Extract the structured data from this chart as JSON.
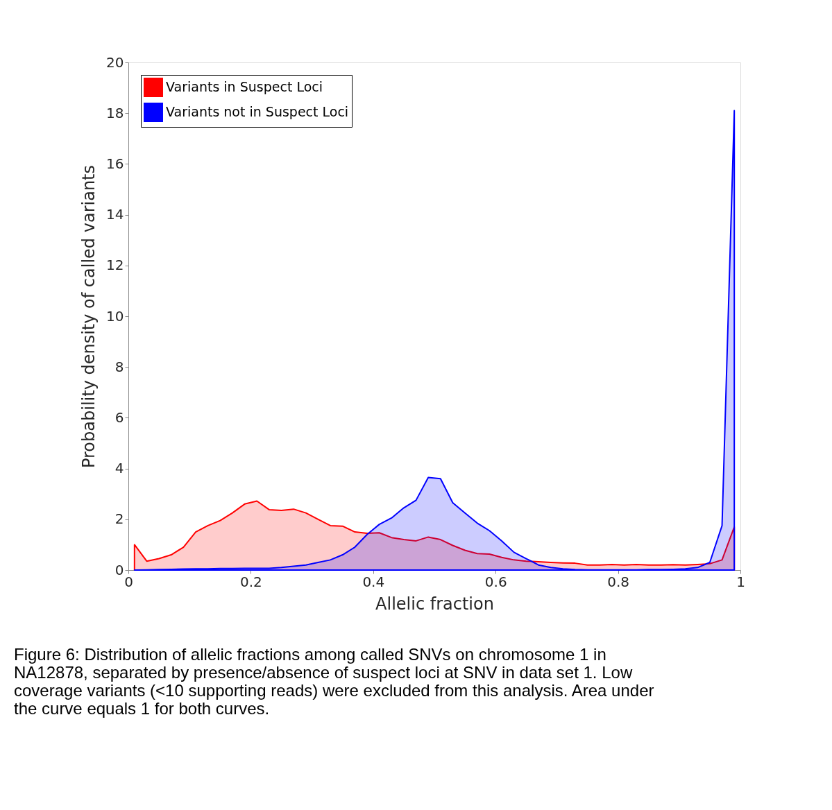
{
  "chart_data": {
    "type": "area",
    "xlabel": "Allelic fraction",
    "ylabel": "Probability density of called variants",
    "x": [
      0.01,
      0.03,
      0.05,
      0.07,
      0.09,
      0.11,
      0.13,
      0.15,
      0.17,
      0.19,
      0.21,
      0.23,
      0.25,
      0.27,
      0.29,
      0.31,
      0.33,
      0.35,
      0.37,
      0.39,
      0.41,
      0.43,
      0.45,
      0.47,
      0.49,
      0.51,
      0.53,
      0.55,
      0.57,
      0.59,
      0.61,
      0.63,
      0.65,
      0.67,
      0.69,
      0.71,
      0.73,
      0.75,
      0.77,
      0.79,
      0.81,
      0.83,
      0.85,
      0.87,
      0.89,
      0.91,
      0.93,
      0.95,
      0.97,
      0.99
    ],
    "series": [
      {
        "name": "Variants in Suspect Loci",
        "color": "#ff0000",
        "values": [
          1.0,
          0.35,
          0.45,
          0.6,
          0.9,
          1.5,
          1.75,
          1.95,
          2.25,
          2.6,
          2.72,
          2.38,
          2.35,
          2.4,
          2.25,
          2.0,
          1.75,
          1.73,
          1.5,
          1.45,
          1.47,
          1.28,
          1.2,
          1.15,
          1.3,
          1.2,
          0.97,
          0.78,
          0.65,
          0.63,
          0.5,
          0.4,
          0.35,
          0.33,
          0.3,
          0.28,
          0.27,
          0.2,
          0.2,
          0.22,
          0.2,
          0.22,
          0.2,
          0.2,
          0.21,
          0.2,
          0.22,
          0.25,
          0.4,
          1.7
        ]
      },
      {
        "name": "Variants not in Suspect Loci",
        "color": "#0000ff",
        "values": [
          0,
          0.01,
          0.02,
          0.03,
          0.04,
          0.05,
          0.05,
          0.06,
          0.06,
          0.07,
          0.07,
          0.07,
          0.1,
          0.15,
          0.2,
          0.3,
          0.4,
          0.6,
          0.9,
          1.4,
          1.8,
          2.05,
          2.45,
          2.75,
          3.65,
          3.6,
          2.65,
          2.25,
          1.85,
          1.55,
          1.15,
          0.7,
          0.45,
          0.2,
          0.1,
          0.05,
          0.02,
          0.01,
          0.01,
          0.01,
          0.01,
          0.01,
          0.02,
          0.02,
          0.03,
          0.05,
          0.1,
          0.3,
          1.75,
          18.1
        ]
      }
    ],
    "xlim": [
      0,
      1
    ],
    "xticks": [
      {
        "value": 0,
        "label": "0"
      },
      0.2,
      0.4,
      0.6,
      0.8,
      {
        "value": 1,
        "label": "1"
      }
    ],
    "ylim": [
      0,
      20
    ],
    "yticks": [
      0,
      2,
      4,
      6,
      8,
      10,
      12,
      14,
      16,
      18,
      20
    ],
    "grid": false,
    "legend": "top left",
    "annotations": [
      "Figure 6: Distribution of allelic fractions among called SNVs on chromosome 1 in NA12878, separated by presence/absence of suspect loci at SNV in data set 1. Low coverage variants (<10 supporting reads) were excluded from this analysis. Area under the curve equals 1 for both curves."
    ]
  }
}
